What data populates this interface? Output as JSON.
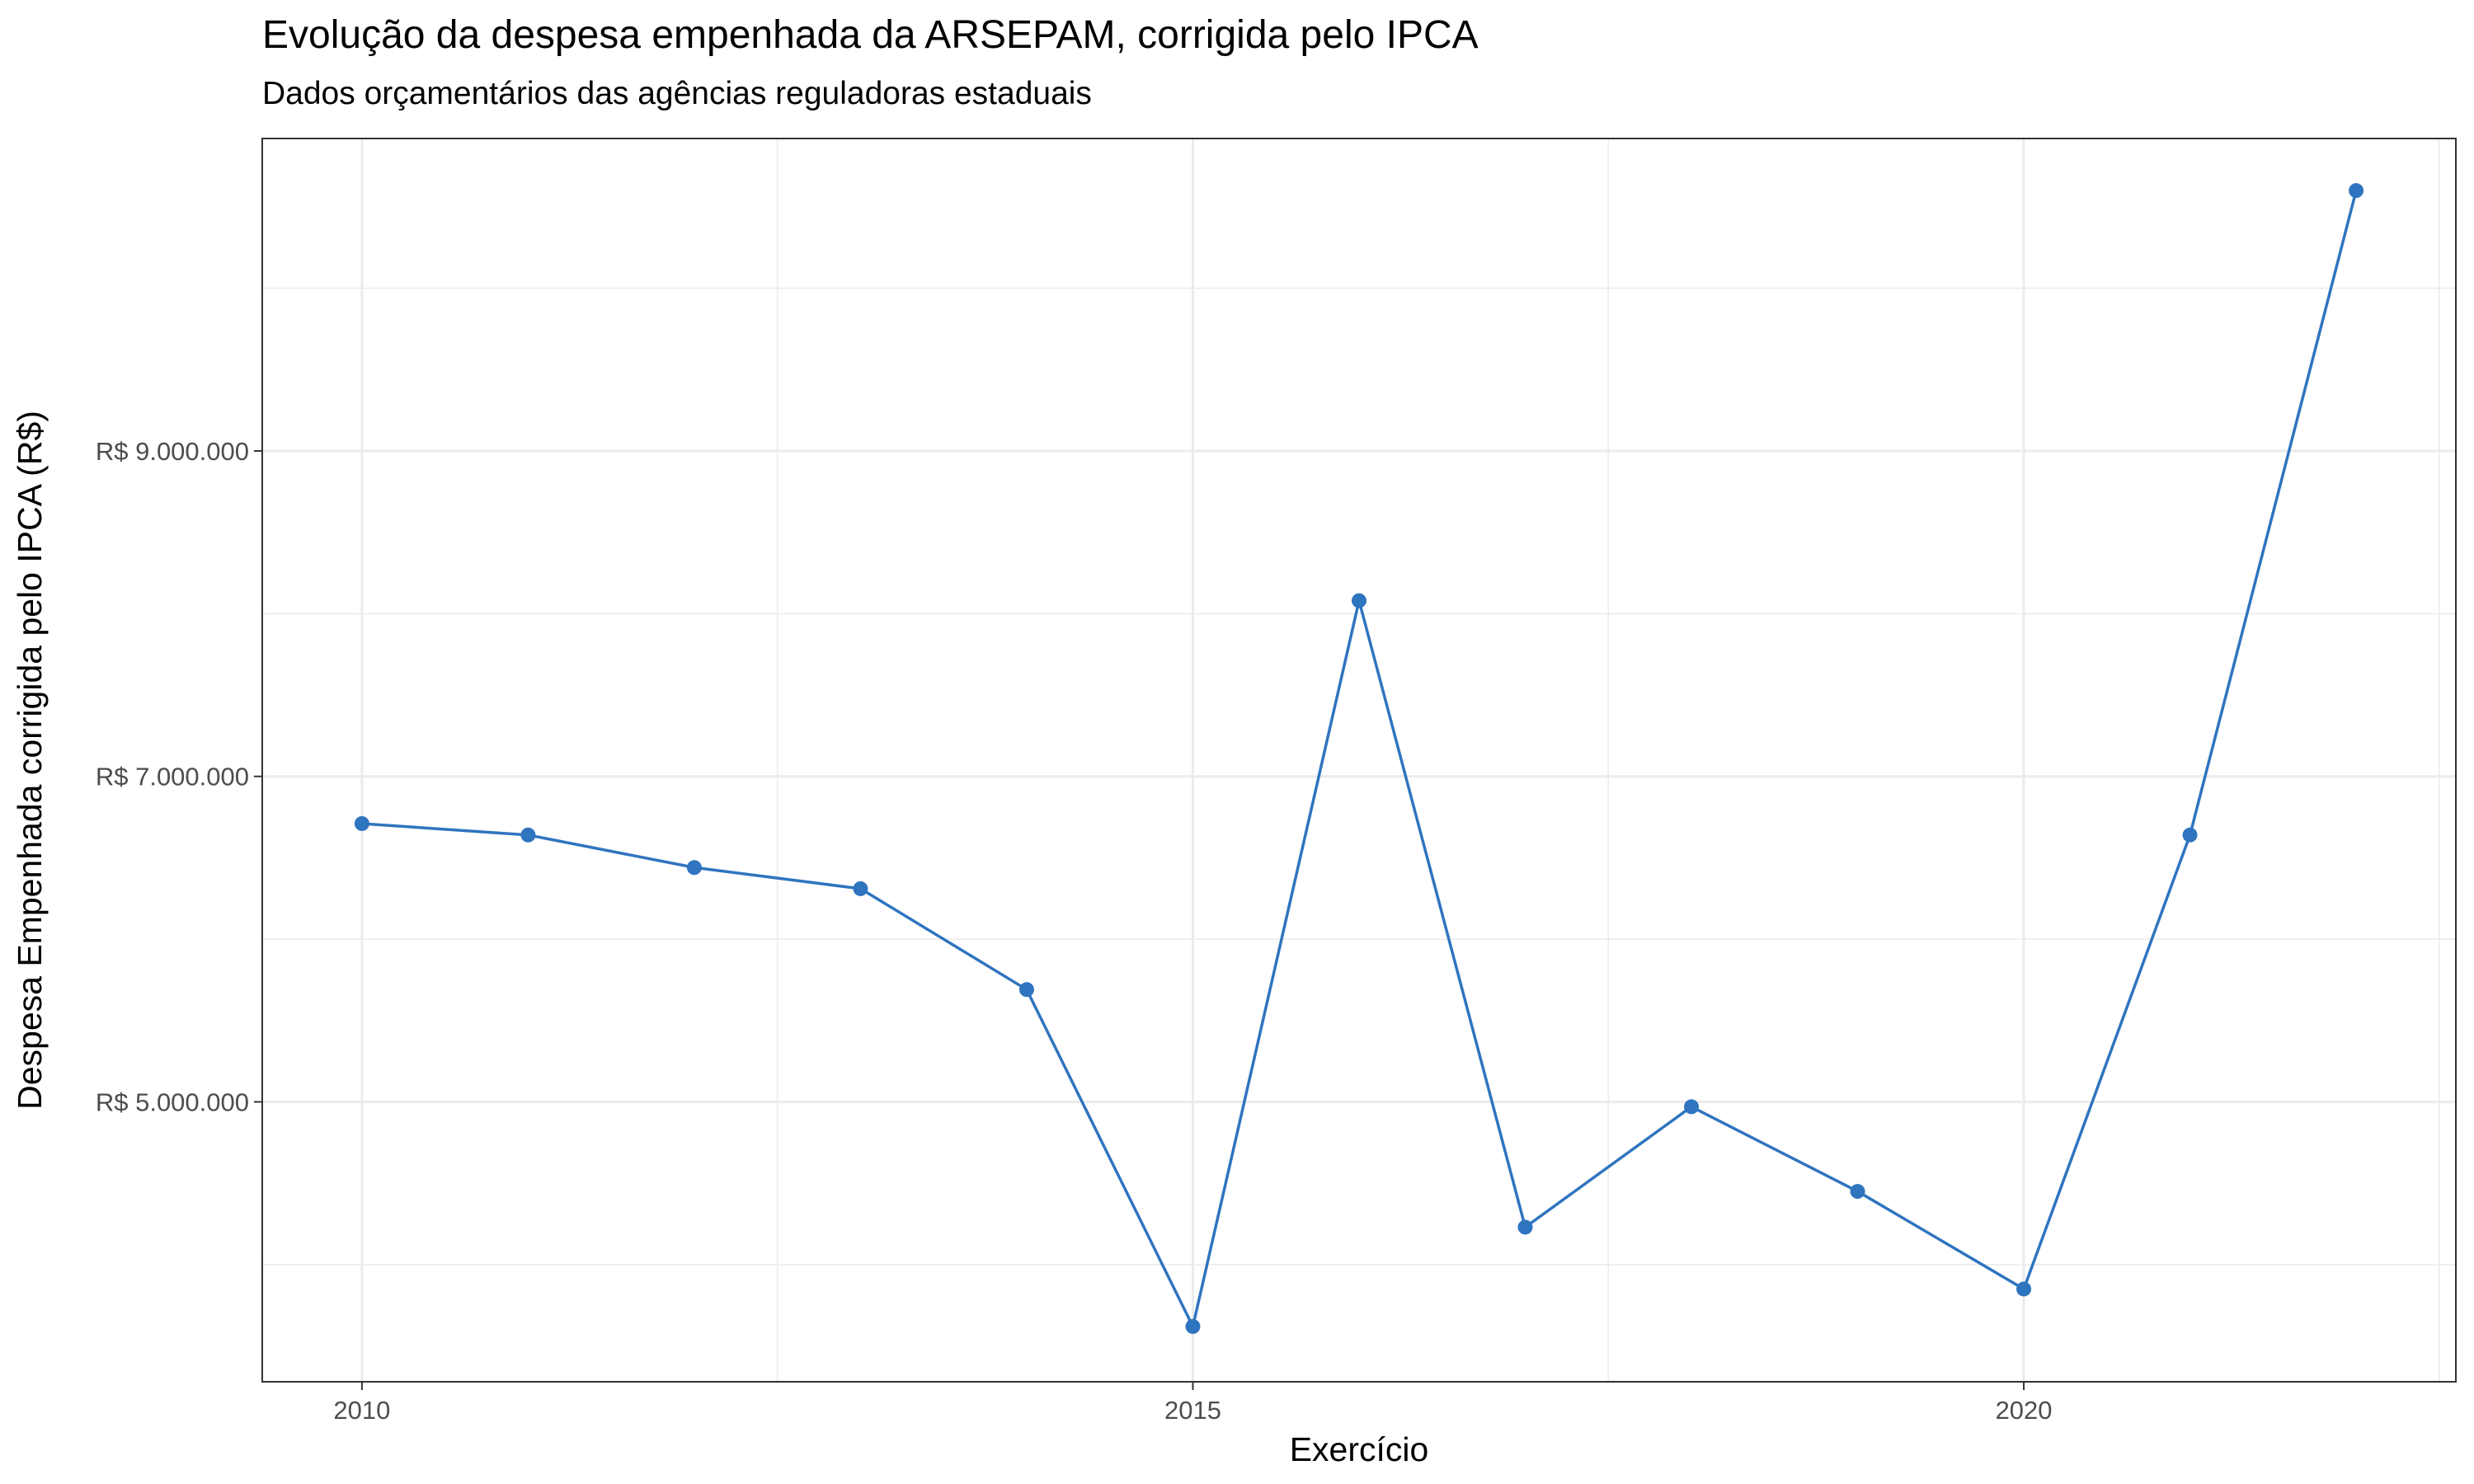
{
  "chart_data": {
    "type": "line",
    "title": "Evolução da despesa empenhada da ARSEPAM, corrigida pelo IPCA",
    "subtitle": "Dados orçamentários das agências reguladoras estaduais",
    "xlabel": "Exercício",
    "ylabel": "Despesa Empenhada corrigida pelo IPCA (R$)",
    "x": [
      2010,
      2011,
      2012,
      2013,
      2014,
      2015,
      2016,
      2017,
      2018,
      2019,
      2020,
      2021,
      2022
    ],
    "series": [
      {
        "name": "",
        "color": "#2f74bf",
        "values": [
          6710000,
          6640000,
          6440000,
          6310000,
          5690000,
          3620000,
          8080000,
          4230000,
          4970000,
          4450000,
          3850000,
          6640000,
          10600000
        ]
      }
    ],
    "xlim": [
      2009.4,
      2022.6
    ],
    "ylim": [
      3280000,
      10920000
    ],
    "x_ticks": [
      {
        "value": 2010,
        "label": "2010"
      },
      {
        "value": 2015,
        "label": "2015"
      },
      {
        "value": 2020,
        "label": "2020"
      }
    ],
    "x_minor_ticks": [
      2012.5,
      2017.5,
      2022.5
    ],
    "y_ticks": [
      {
        "value": 5000000,
        "label": "R$ 5.000.000"
      },
      {
        "value": 7000000,
        "label": "R$ 7.000.000"
      },
      {
        "value": 9000000,
        "label": "R$ 9.000.000"
      }
    ],
    "y_minor_ticks": [
      4000000,
      6000000,
      8000000,
      10000000
    ],
    "grid": true,
    "legend": "none"
  }
}
